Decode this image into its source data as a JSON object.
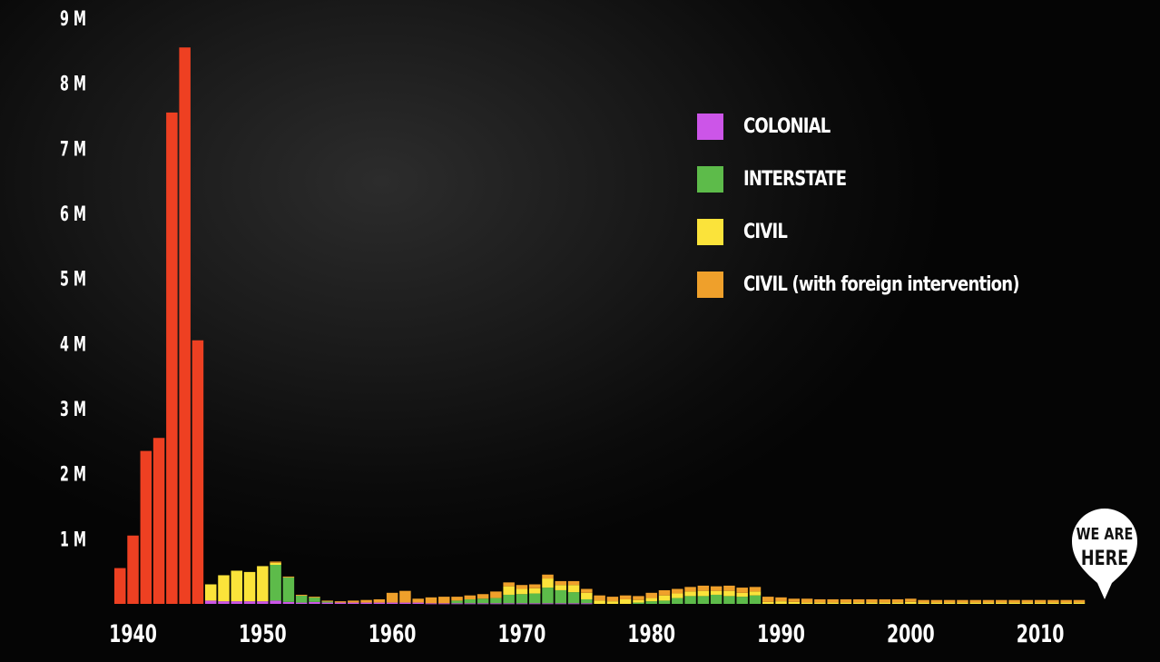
{
  "legend": {
    "colonial": "COLONIAL",
    "interstate": "INTERSTATE",
    "civil": "CIVIL",
    "civil_foreign": "CIVIL (with foreign intervention)"
  },
  "marker": {
    "line1": "WE ARE",
    "line2": "HERE"
  },
  "colors": {
    "ww2": "#ee4022",
    "colonial": "#cc55e8",
    "interstate": "#5dbb4a",
    "civil": "#fbe33a",
    "civil_foreign": "#efa02b",
    "background": "#0b0b0b"
  },
  "chart_data": {
    "type": "bar",
    "stacked": true,
    "ylim": [
      0,
      9000000
    ],
    "yticks": [
      "9 M",
      "8 M",
      "7 M",
      "6 M",
      "5 M",
      "4 M",
      "3 M",
      "2 M",
      "1 M"
    ],
    "xticks": [
      "1940",
      "1950",
      "1960",
      "1970",
      "1980",
      "1990",
      "2000",
      "2010"
    ],
    "x_start_year": 1939,
    "series_order": [
      "ww2",
      "colonial",
      "interstate",
      "civil",
      "civil_foreign"
    ],
    "series": {
      "ww2": [
        550000,
        1050000,
        2350000,
        2550000,
        7550000,
        8550000,
        4050000
      ],
      "colonial": [
        0,
        0,
        0,
        0,
        0,
        0,
        0,
        50000,
        40000,
        40000,
        40000,
        40000,
        50000,
        30000,
        20000,
        30000,
        20000,
        20000,
        20000,
        20000,
        20000,
        20000,
        20000,
        20000,
        10000,
        10000,
        10000,
        10000,
        10000,
        10000,
        10000,
        10000,
        10000,
        10000,
        10000,
        10000,
        10000,
        0,
        0,
        0,
        0,
        0,
        0,
        0,
        0,
        0,
        0,
        0,
        0,
        0,
        0,
        0,
        0,
        0,
        0,
        0,
        0,
        0,
        0,
        0,
        0,
        0,
        0,
        0,
        0,
        0,
        0,
        0,
        0,
        0,
        0,
        0,
        0,
        0,
        0,
        0
      ],
      "interstate": [
        0,
        0,
        0,
        0,
        0,
        0,
        0,
        0,
        0,
        0,
        0,
        0,
        550000,
        380000,
        110000,
        70000,
        20000,
        0,
        0,
        0,
        0,
        0,
        0,
        0,
        0,
        0,
        40000,
        60000,
        70000,
        80000,
        130000,
        140000,
        150000,
        240000,
        200000,
        170000,
        60000,
        0,
        0,
        0,
        20000,
        40000,
        50000,
        90000,
        120000,
        120000,
        140000,
        120000,
        110000,
        130000,
        0,
        0,
        0,
        0,
        0,
        0,
        0,
        0,
        0,
        0,
        0,
        0,
        0,
        0,
        0,
        0,
        0,
        0,
        0,
        0,
        0,
        0,
        0,
        0,
        0
      ],
      "civil": [
        0,
        0,
        0,
        0,
        0,
        0,
        0,
        250000,
        400000,
        470000,
        450000,
        540000,
        30000,
        0,
        0,
        0,
        0,
        0,
        0,
        0,
        0,
        0,
        0,
        0,
        0,
        0,
        0,
        0,
        0,
        0,
        130000,
        80000,
        80000,
        140000,
        80000,
        110000,
        100000,
        50000,
        40000,
        70000,
        40000,
        50000,
        80000,
        70000,
        70000,
        80000,
        60000,
        80000,
        60000,
        60000,
        30000,
        40000,
        30000,
        20000,
        20000,
        20000,
        20000,
        20000,
        20000,
        20000,
        20000,
        30000,
        20000,
        20000,
        20000,
        20000,
        20000,
        20000,
        20000,
        20000,
        20000,
        20000,
        20000,
        20000,
        20000
      ],
      "civil_foreign": [
        0,
        0,
        0,
        0,
        0,
        0,
        0,
        0,
        0,
        0,
        0,
        0,
        20000,
        10000,
        10000,
        10000,
        10000,
        20000,
        30000,
        40000,
        50000,
        150000,
        180000,
        60000,
        90000,
        100000,
        60000,
        60000,
        70000,
        100000,
        60000,
        60000,
        60000,
        60000,
        60000,
        60000,
        60000,
        80000,
        70000,
        60000,
        60000,
        80000,
        80000,
        70000,
        70000,
        80000,
        70000,
        80000,
        80000,
        70000,
        80000,
        60000,
        50000,
        60000,
        50000,
        50000,
        50000,
        50000,
        50000,
        50000,
        50000,
        50000,
        40000,
        40000,
        40000,
        40000,
        40000,
        40000,
        40000,
        40000,
        40000,
        40000,
        40000,
        40000,
        40000
      ]
    }
  }
}
